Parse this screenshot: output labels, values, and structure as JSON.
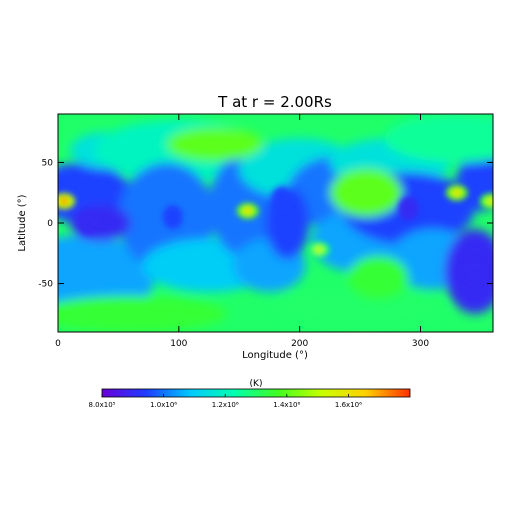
{
  "chart_data": {
    "type": "heatmap",
    "title": "T at r = 2.00Rs",
    "xlabel": "Longitude (°)",
    "ylabel": "Latitude (°)",
    "xlim": [
      0,
      360
    ],
    "ylim": [
      -90,
      90
    ],
    "xticks": [
      0,
      100,
      200,
      300
    ],
    "yticks": [
      -50,
      0,
      50
    ],
    "colorbar": {
      "unit_label": "(K)",
      "range": [
        800000,
        1800000
      ],
      "tick_values": [
        800000,
        1000000,
        1200000,
        1400000,
        1600000
      ],
      "tick_labels": [
        "8.0x10⁵",
        "1.0x10⁶",
        "1.2x10⁶",
        "1.4x10⁶",
        "1.6x10⁶"
      ],
      "colormap": [
        "#6a00d8",
        "#1e3cff",
        "#00c8ff",
        "#00ffb0",
        "#40ff20",
        "#c8ff00",
        "#ffd000",
        "#ff3000"
      ]
    },
    "hotspots_K": [
      {
        "lon": 5,
        "lat": 18,
        "value": 1700000
      },
      {
        "lon": 157,
        "lat": 10,
        "value": 1600000
      },
      {
        "lon": 216,
        "lat": -22,
        "value": 1500000
      },
      {
        "lon": 330,
        "lat": 25,
        "value": 1600000
      },
      {
        "lon": 358,
        "lat": 18,
        "value": 1550000
      }
    ],
    "coldspots_K": [
      {
        "lon": 25,
        "lat": 0,
        "value": 900000
      },
      {
        "lon": 95,
        "lat": 5,
        "value": 950000
      },
      {
        "lon": 185,
        "lat": 20,
        "value": 950000
      },
      {
        "lon": 290,
        "lat": 12,
        "value": 900000
      },
      {
        "lon": 345,
        "lat": -40,
        "value": 900000
      }
    ]
  }
}
